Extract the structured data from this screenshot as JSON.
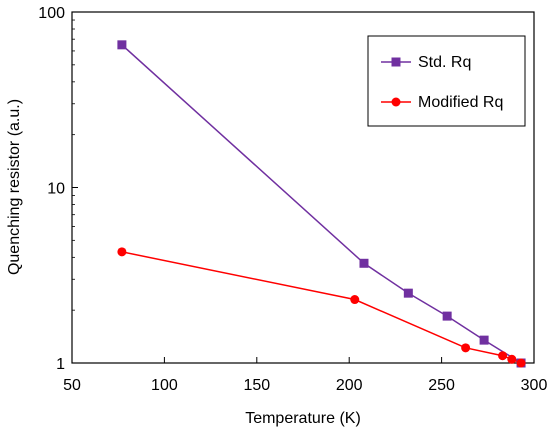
{
  "chart_data": {
    "type": "line",
    "xlabel": "Temperature (K)",
    "ylabel": "Quenching resistor (a.u.)",
    "xlim": [
      50,
      300
    ],
    "ylim": [
      1,
      100
    ],
    "yscale": "log",
    "x_ticks": [
      50,
      100,
      150,
      200,
      250,
      300
    ],
    "y_ticks": [
      1,
      10,
      100
    ],
    "grid": false,
    "legend_position": "top-right",
    "series": [
      {
        "name": "Std. Rq",
        "color": "#7030a0",
        "marker": "square",
        "x": [
          77,
          208,
          232,
          253,
          273,
          293
        ],
        "y": [
          65,
          3.7,
          2.5,
          1.85,
          1.35,
          1.0
        ]
      },
      {
        "name": "Modified Rq",
        "color": "#ff0000",
        "marker": "circle",
        "x": [
          77,
          203,
          263,
          283,
          288,
          293
        ],
        "y": [
          4.3,
          2.3,
          1.22,
          1.1,
          1.05,
          1.0
        ]
      }
    ]
  }
}
